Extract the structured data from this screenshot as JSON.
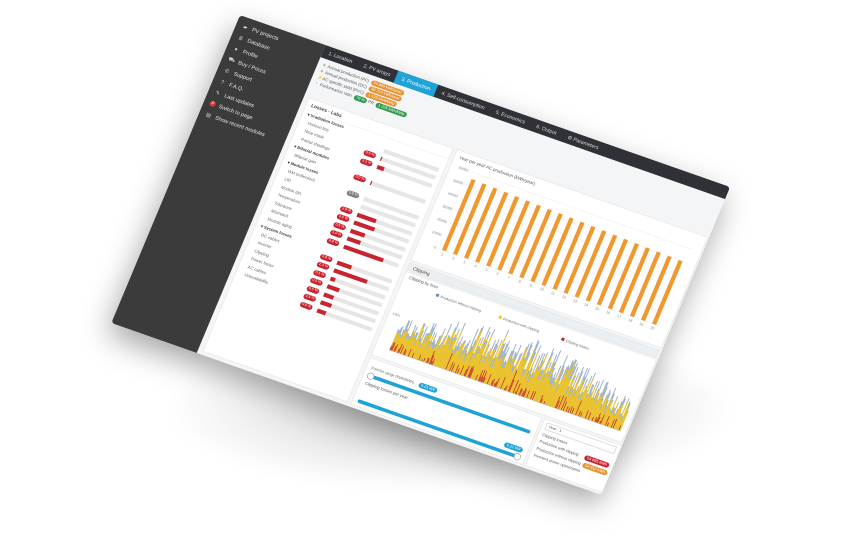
{
  "sidebar": {
    "items": [
      {
        "icon": "folder-icon",
        "glyph": "▰",
        "label": "PV projects"
      },
      {
        "icon": "database-icon",
        "glyph": "≣",
        "label": "Database"
      },
      {
        "icon": "profile-icon",
        "glyph": "●",
        "label": "Profile"
      },
      {
        "icon": "cart-icon",
        "glyph": "⛟",
        "label": "Buy / Prices"
      },
      {
        "icon": "support-icon",
        "glyph": "✆",
        "label": "Support"
      },
      {
        "icon": "question-icon",
        "glyph": "?",
        "label": "F.A.Q."
      },
      {
        "icon": "updates-icon",
        "glyph": "✎",
        "label": "Last updates"
      },
      {
        "icon": "pvsyst-icon",
        "glyph": "P",
        "label": "Switch to page"
      },
      {
        "icon": "modules-icon",
        "glyph": "▤",
        "label": "Show recent modules"
      }
    ]
  },
  "nav": {
    "tabs": [
      {
        "label": "1. Location"
      },
      {
        "label": "2. PV arrays"
      },
      {
        "label": "3. Production",
        "active": true
      },
      {
        "label": "4. Self-consumption"
      },
      {
        "label": "5. Economics"
      },
      {
        "label": "6. Output"
      },
      {
        "label": "⚙ Parameters"
      }
    ]
  },
  "summary": {
    "rows": [
      {
        "label": "Annual production (AC)",
        "badge": "54 865 kWh/year"
      },
      {
        "label": "Annual production (DC)",
        "badge": "56 214 kWh/year"
      },
      {
        "label": "AC specific yield (PVC)",
        "badge": "1 128 kWh/kWp"
      },
      {
        "label": "Performance ratio",
        "badge": "79 %",
        "badge2": "1 226 kWh/kWp",
        "mid": "PR"
      }
    ]
  },
  "losses": {
    "title": "Losses - Labs",
    "rows": [
      {
        "label": "Irradiation losses",
        "head": true
      },
      {
        "label": "Horizon line",
        "badge": "",
        "fill": 0
      },
      {
        "label": "Near mask",
        "badge": "0.5 %",
        "fill": 0.02
      },
      {
        "label": "Partial shadings",
        "badge": "2.1 %",
        "fill": 0.12
      },
      {
        "label": "Bifacial modules",
        "head": true
      },
      {
        "label": "Bifacial gain",
        "badge": "0.0 %",
        "fill": 0.02
      },
      {
        "label": "Module losses",
        "head": true
      },
      {
        "label": "IAM (reflection)",
        "badge": "2.8 %",
        "fill": 0,
        "gray": true
      },
      {
        "label": "LID",
        "badge": "",
        "fill": 0
      },
      {
        "label": "Module dirt",
        "badge": "2.0 %",
        "fill": 0.34
      },
      {
        "label": "Temperature",
        "badge": "3.5 %",
        "fill": 0.38
      },
      {
        "label": "Tolerance",
        "badge": "0.5 %",
        "fill": 0.26
      },
      {
        "label": "Mismatch",
        "badge": "1.0 %",
        "fill": 0.24
      },
      {
        "label": "Module aging",
        "badge": "4.8 %",
        "fill": 0.72
      },
      {
        "label": "System losses",
        "head": true
      },
      {
        "label": "DC cables",
        "badge": "0.8 %",
        "fill": 0.26
      },
      {
        "label": "Inverter",
        "badge": "2.3 %",
        "fill": 0.6
      },
      {
        "label": "Clipping",
        "badge": "0.1 %",
        "fill": 0.08
      },
      {
        "label": "Power factor",
        "badge": "0.5 %",
        "fill": 0.22
      },
      {
        "label": "AC cables",
        "badge": "0.5 %",
        "fill": 0.18
      },
      {
        "label": "Unavailability",
        "badge": "0.5 %",
        "fill": 0.2
      },
      {
        "label": "",
        "badge": "0.5 %",
        "fill": 0.16
      }
    ]
  },
  "yearly": {
    "title": "Year per year AC production (kWh/year)",
    "tick_labels": [
      "60000",
      "50000",
      "40000",
      "30000",
      "20000",
      "10000",
      "0"
    ]
  },
  "chart_data": {
    "type": "bar",
    "title": "Year per year AC production (kWh/year)",
    "categories": [
      "1",
      "2",
      "3",
      "4",
      "5",
      "6",
      "7",
      "8",
      "9",
      "10",
      "11",
      "12",
      "13",
      "14",
      "15",
      "16",
      "17",
      "18",
      "19",
      "20"
    ],
    "values": [
      55200,
      54900,
      54600,
      54300,
      54000,
      53700,
      53400,
      53100,
      52800,
      52500,
      52200,
      51900,
      51600,
      51300,
      51000,
      50700,
      50400,
      50100,
      49800,
      49500
    ],
    "ylim": [
      0,
      60000
    ],
    "color": "#f0972d"
  },
  "clipping": {
    "header": "Clipping",
    "hourly_title": "Clipping by hour",
    "legend": [
      "Production without clipping",
      "Production with clipping",
      "Clipping losses"
    ],
    "legend_colors": [
      "#6b8fb3",
      "#f5c518",
      "#c8232f"
    ],
    "y_unit": "kWh",
    "yearly_title": "Clipping losses per year",
    "slider_label": "Inverter range (kWh/kWh)",
    "slider_value": "5.21 kW",
    "slider_value_end": "5.21 kW"
  },
  "info": {
    "select_label": "Year : 1",
    "title": "Clipping losses",
    "rows": [
      {
        "label": "Production with clipping",
        "badge": "54 865 kWh"
      },
      {
        "label": "Production without clipping",
        "badge": "54 910 kWh"
      },
      {
        "label": "Inverters power optimization",
        "badge": ""
      }
    ]
  }
}
